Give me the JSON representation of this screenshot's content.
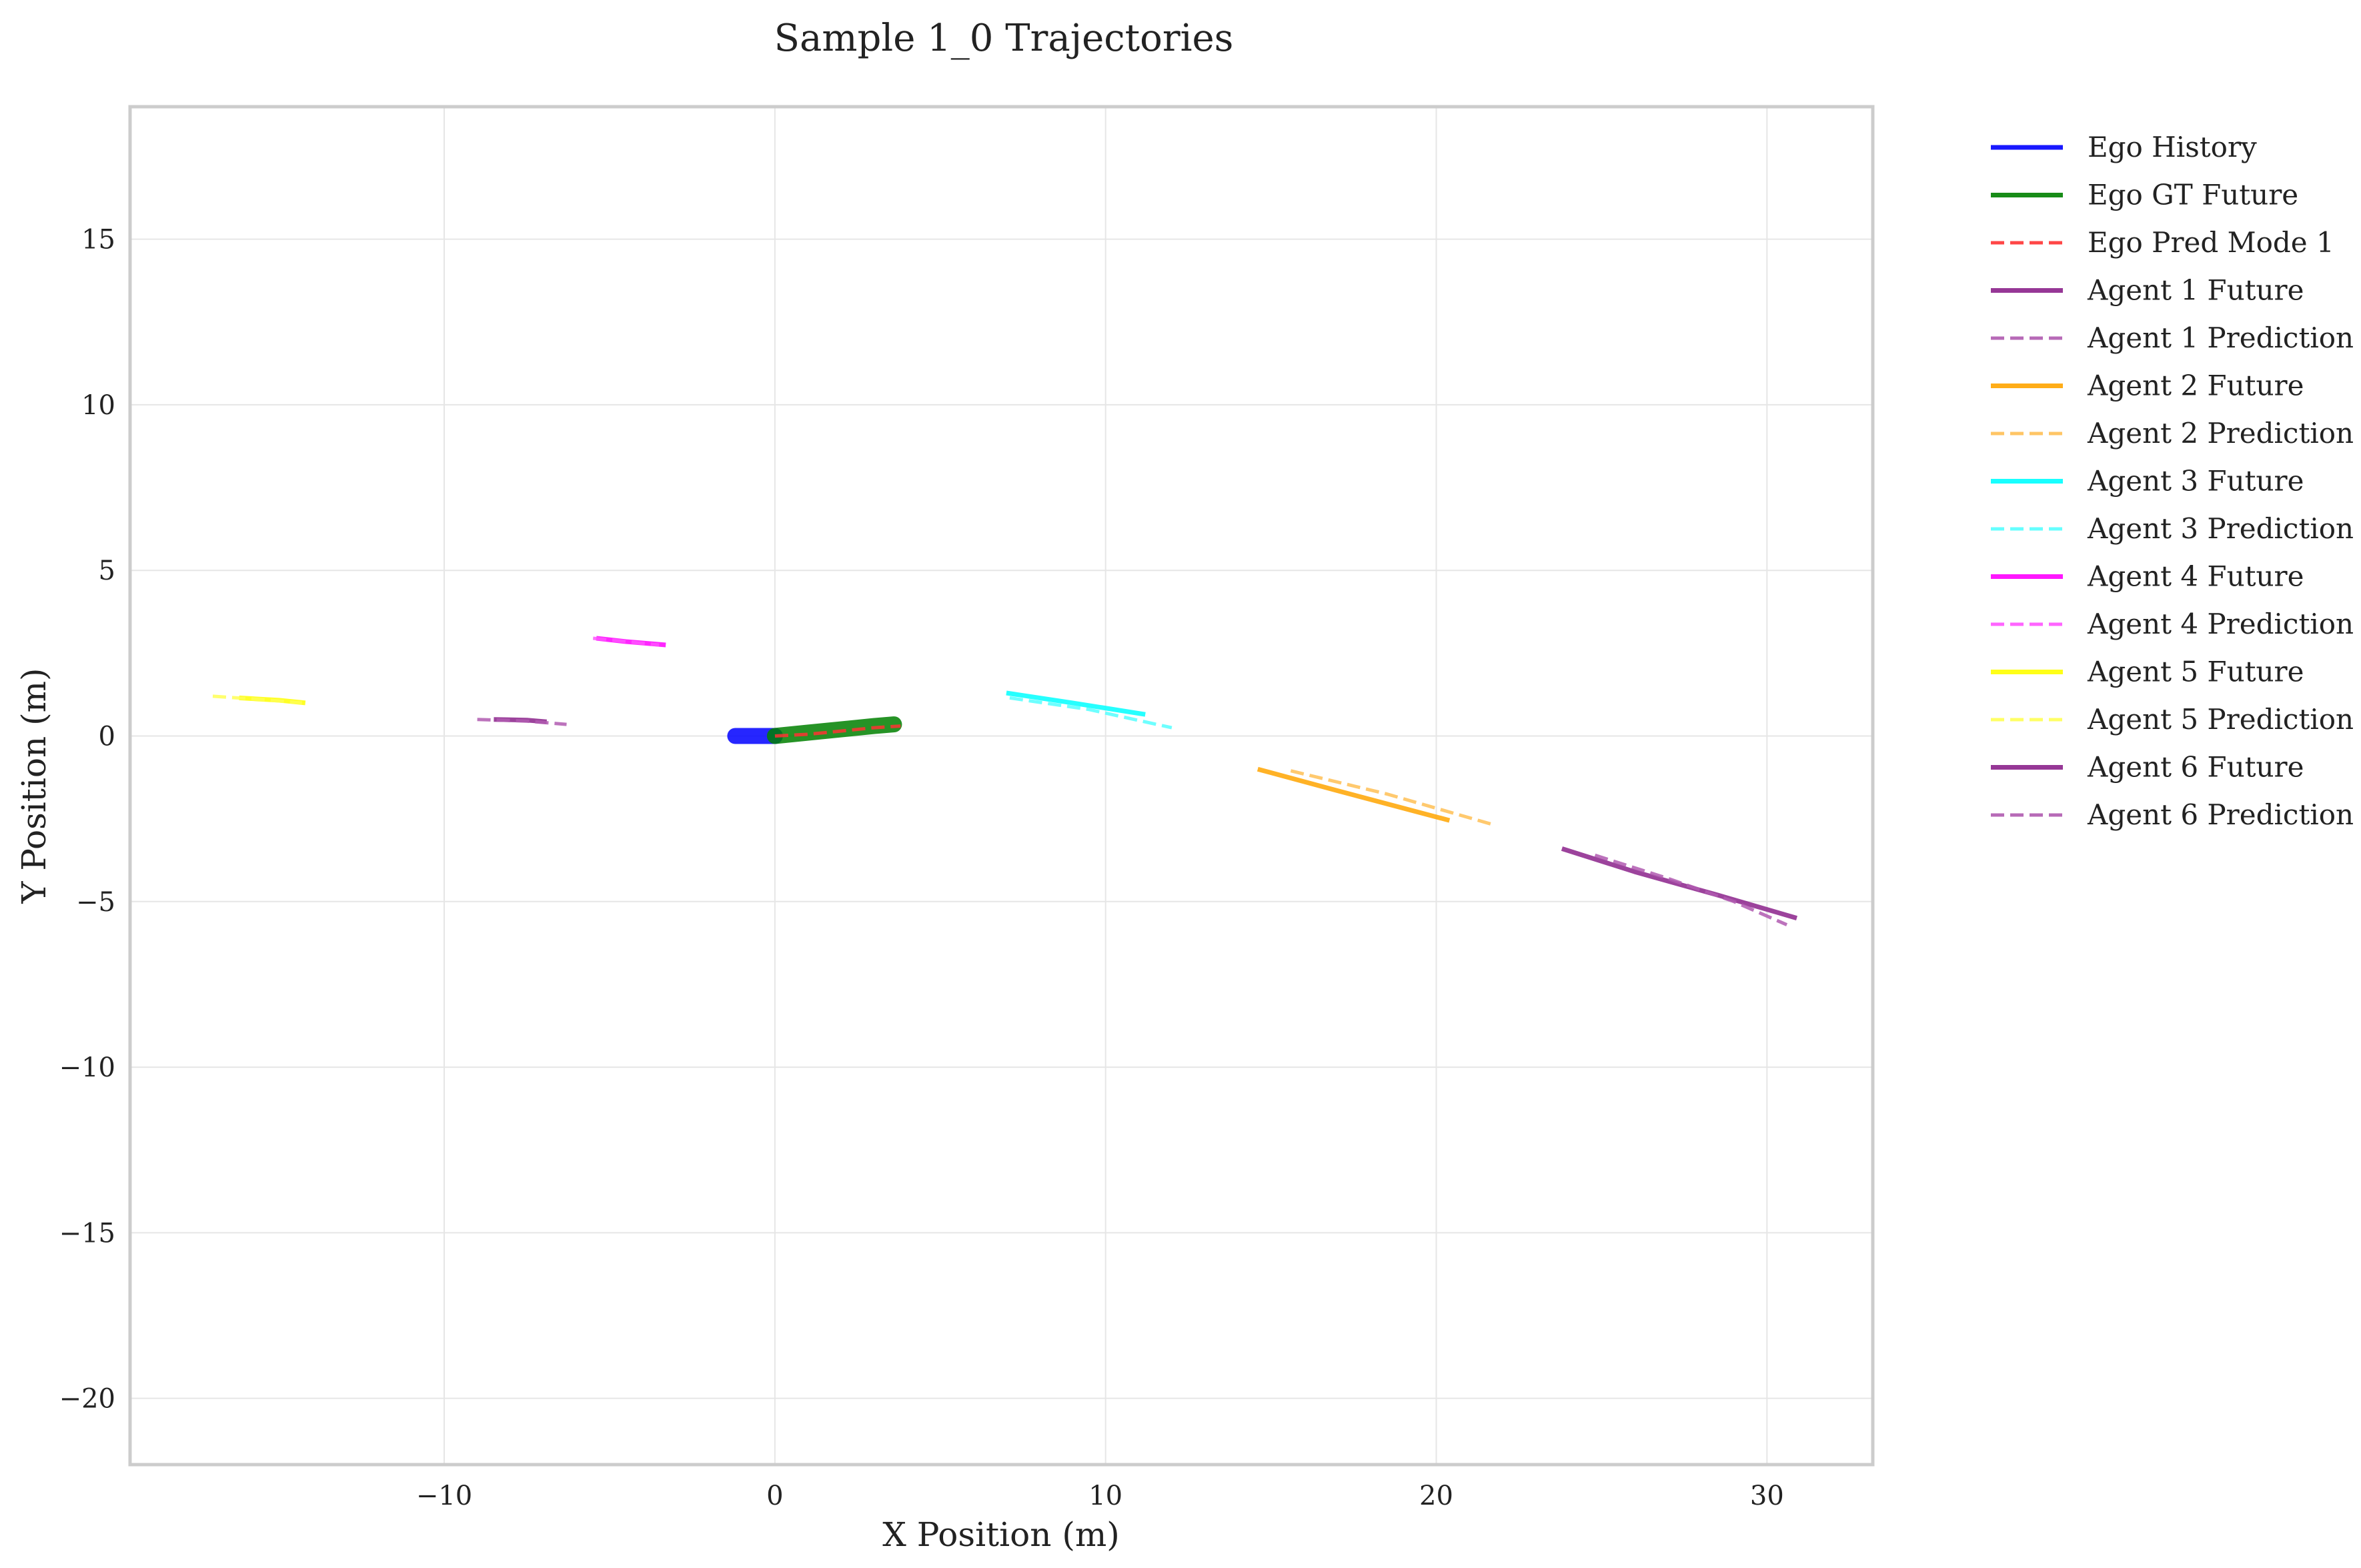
{
  "chart_data": {
    "type": "line",
    "title": "Sample 1_0 Trajectories",
    "xlabel": "X Position (m)",
    "ylabel": "Y Position (m)",
    "xlim": [
      -19.5,
      33.2
    ],
    "ylim": [
      -22,
      19
    ],
    "xticks": [
      -10,
      0,
      10,
      20,
      30
    ],
    "xtick_labels": [
      "−10",
      "0",
      "10",
      "20",
      "30"
    ],
    "yticks": [
      -20,
      -15,
      -10,
      -5,
      0,
      5,
      10,
      15
    ],
    "ytick_labels": [
      "−20",
      "−15",
      "−10",
      "−5",
      "0",
      "5",
      "10",
      "15"
    ],
    "grid": true,
    "legend_position": "outside-right",
    "series": [
      {
        "name": "Ego History",
        "color": "#0000ff",
        "style": "solid",
        "x": [
          -1.2,
          -0.8,
          -0.4,
          0.0
        ],
        "y": [
          0.0,
          0.0,
          0.0,
          0.0
        ]
      },
      {
        "name": "Ego GT Future",
        "color": "#008000",
        "style": "solid",
        "x": [
          0.0,
          1.0,
          2.0,
          3.0,
          3.6
        ],
        "y": [
          0.0,
          0.1,
          0.2,
          0.3,
          0.35
        ]
      },
      {
        "name": "Ego Pred Mode 1",
        "color": "#ff3333",
        "style": "dashed",
        "x": [
          0.0,
          1.0,
          2.0,
          3.0,
          3.8
        ],
        "y": [
          0.0,
          0.05,
          0.15,
          0.25,
          0.3
        ]
      },
      {
        "name": "Agent 1 Future",
        "color": "#8b228b",
        "style": "solid",
        "x": [
          23.8,
          26.0,
          28.5,
          30.9
        ],
        "y": [
          -3.4,
          -4.1,
          -4.8,
          -5.5
        ]
      },
      {
        "name": "Agent 1 Prediction",
        "color": "#b05ab0",
        "style": "dashed",
        "x": [
          24.8,
          27.0,
          29.0,
          30.6
        ],
        "y": [
          -3.6,
          -4.3,
          -5.0,
          -5.7
        ]
      },
      {
        "name": "Agent 2 Future",
        "color": "#ffa500",
        "style": "solid",
        "x": [
          14.6,
          17.0,
          20.4
        ],
        "y": [
          -1.0,
          -1.65,
          -2.55
        ]
      },
      {
        "name": "Agent 2 Prediction",
        "color": "#ffbf55",
        "style": "dashed",
        "x": [
          15.6,
          18.5,
          21.8
        ],
        "y": [
          -1.05,
          -1.75,
          -2.7
        ]
      },
      {
        "name": "Agent 3 Future",
        "color": "#00ffff",
        "style": "solid",
        "x": [
          7.0,
          9.0,
          11.2
        ],
        "y": [
          1.3,
          1.0,
          0.65
        ]
      },
      {
        "name": "Agent 3 Prediction",
        "color": "#55ffff",
        "style": "dashed",
        "x": [
          7.1,
          9.5,
          12.0
        ],
        "y": [
          1.15,
          0.8,
          0.25
        ]
      },
      {
        "name": "Agent 4 Future",
        "color": "#ff00ff",
        "style": "solid",
        "x": [
          -5.4,
          -4.5,
          -3.3
        ],
        "y": [
          2.95,
          2.85,
          2.75
        ]
      },
      {
        "name": "Agent 4 Prediction",
        "color": "#ff55ff",
        "style": "dashed",
        "x": [
          -5.5,
          -4.5,
          -3.5
        ],
        "y": [
          2.95,
          2.85,
          2.75
        ]
      },
      {
        "name": "Agent 5 Future",
        "color": "#ffff00",
        "style": "solid",
        "x": [
          -16.2,
          -15.0,
          -14.2
        ],
        "y": [
          1.15,
          1.08,
          1.0
        ]
      },
      {
        "name": "Agent 5 Prediction",
        "color": "#ffff55",
        "style": "dashed",
        "x": [
          -17.0,
          -15.5,
          -14.3
        ],
        "y": [
          1.2,
          1.1,
          1.0
        ]
      },
      {
        "name": "Agent 6 Future",
        "color": "#8b228b",
        "style": "solid",
        "x": [
          -8.5,
          -7.5,
          -6.9
        ],
        "y": [
          0.5,
          0.48,
          0.43
        ]
      },
      {
        "name": "Agent 6 Prediction",
        "color": "#b05ab0",
        "style": "dashed",
        "x": [
          -9.0,
          -7.5,
          -6.3
        ],
        "y": [
          0.5,
          0.45,
          0.35
        ]
      }
    ]
  }
}
